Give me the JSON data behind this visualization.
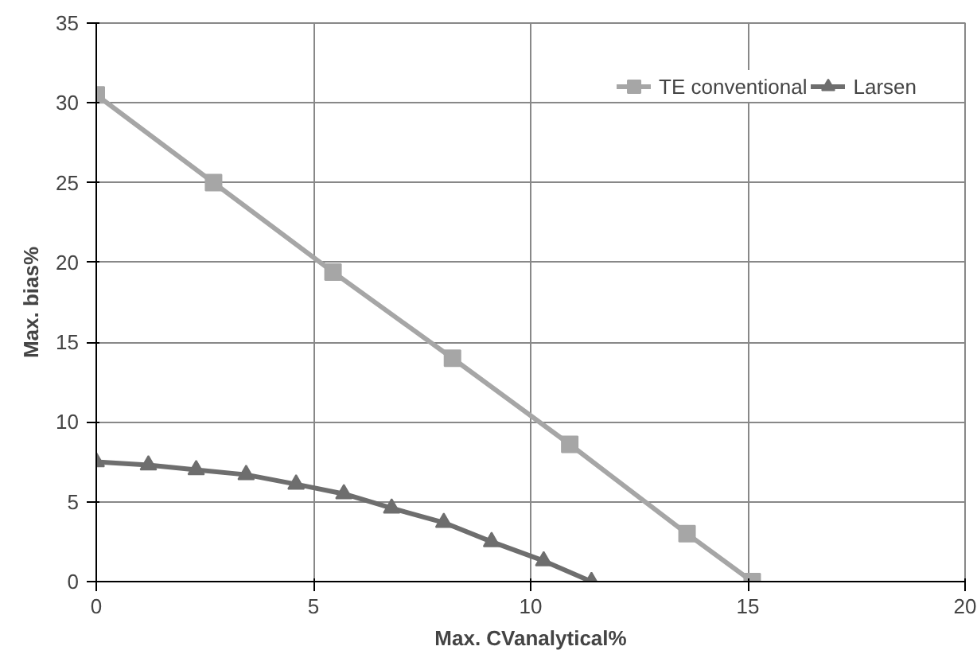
{
  "chart_data": {
    "type": "line",
    "xlabel": "Max. CVanalytical%",
    "ylabel": "Max. bias%",
    "xlim": [
      0,
      20
    ],
    "ylim": [
      0,
      35
    ],
    "xticks": [
      0,
      5,
      10,
      15,
      20
    ],
    "yticks": [
      0,
      5,
      10,
      15,
      20,
      25,
      30,
      35
    ],
    "grid": true,
    "legend": "top right",
    "series": [
      {
        "name": "TE conventional",
        "color": "#a6a6a6",
        "marker": "square",
        "x": [
          0,
          2.7,
          5.45,
          8.2,
          10.9,
          13.6,
          15.1
        ],
        "values": [
          30.5,
          25,
          19.4,
          14,
          8.6,
          3,
          0
        ]
      },
      {
        "name": "Larsen",
        "color": "#6e6e6e",
        "marker": "triangle",
        "x": [
          0,
          1.2,
          2.3,
          3.45,
          4.6,
          5.7,
          6.8,
          8.0,
          9.1,
          10.3,
          11.4
        ],
        "values": [
          7.5,
          7.3,
          7.0,
          6.7,
          6.1,
          5.5,
          4.6,
          3.7,
          2.5,
          1.3,
          0
        ]
      }
    ]
  }
}
